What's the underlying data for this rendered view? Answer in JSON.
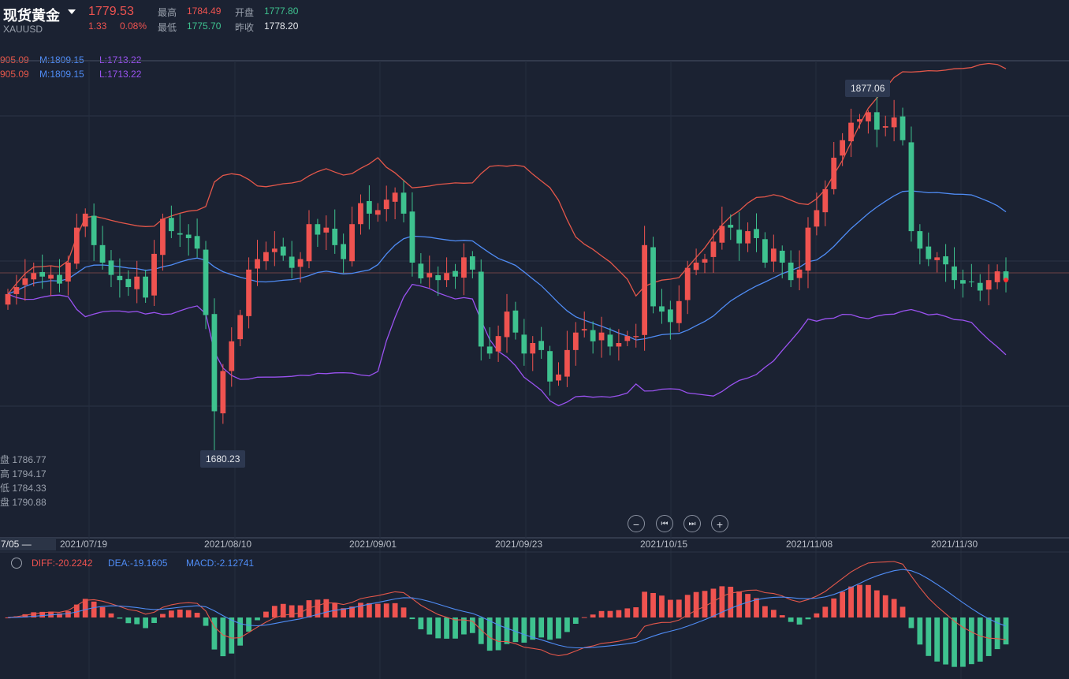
{
  "header": {
    "title": "现货黄金",
    "code": "XAUUSD",
    "price": "1779.53",
    "change": "1.33",
    "change_pct": "0.08%",
    "high_label": "最高",
    "high": "1784.49",
    "low_label": "最低",
    "low": "1775.70",
    "open_label": "开盘",
    "open": "1777.80",
    "prev_label": "昨收",
    "prev": "1778.20"
  },
  "boll": {
    "row1": {
      "u": "905.09",
      "m": "M:1809.15",
      "l": "L:1713.22"
    },
    "row2": {
      "u": "905.09",
      "m": "M:1809.15",
      "l": "L:1713.22"
    }
  },
  "tooltips": {
    "max": "1877.06",
    "min": "1680.23"
  },
  "ohlc_panel": [
    "盘 1786.77",
    "高 1794.17",
    "低 1784.33",
    "盘 1790.88"
  ],
  "controls": {
    "zoom_out": "−",
    "prev": "⏮",
    "next": "⏭",
    "zoom_in": "+"
  },
  "xaxis": {
    "cursor": "7/05 —",
    "labels": [
      "2021/07/19",
      "2021/08/10",
      "2021/09/01",
      "2021/09/23",
      "2021/10/15",
      "2021/11/08",
      "2021/11/30"
    ]
  },
  "macd": {
    "diff": "DIFF:-20.2242",
    "dea": "DEA:-19.1605",
    "macd": "MACD:-2.12741",
    "gear_icon": "gear-icon"
  },
  "colors": {
    "up": "#ef5350",
    "down": "#3ec28f",
    "boll_upper": "#e4574a",
    "boll_mid": "#4f8cf5",
    "boll_lower": "#9a52f0",
    "bg": "#1b2232"
  },
  "chart_data": {
    "type": "candlestick",
    "title": "现货黄金 XAUUSD",
    "ylim": [
      1675,
      1905
    ],
    "y_marks": {
      "max": 1877.06,
      "min": 1680.23
    },
    "close": [
      1772,
      1776,
      1781,
      1784,
      1782,
      1783,
      1778,
      1790,
      1810,
      1818,
      1800,
      1790,
      1783,
      1780,
      1776,
      1782,
      1770,
      1795,
      1815,
      1808,
      1806,
      1804,
      1798,
      1760,
      1705,
      1728,
      1745,
      1760,
      1786,
      1792,
      1796,
      1798,
      1794,
      1787,
      1792,
      1812,
      1806,
      1810,
      1800,
      1792,
      1812,
      1824,
      1818,
      1820,
      1826,
      1830,
      1818,
      1790,
      1781,
      1784,
      1780,
      1784,
      1782,
      1793,
      1786,
      1742,
      1738,
      1748,
      1762,
      1750,
      1738,
      1744,
      1740,
      1722,
      1726,
      1740,
      1750,
      1752,
      1745,
      1750,
      1742,
      1744,
      1748,
      1748,
      1800,
      1765,
      1762,
      1756,
      1768,
      1787,
      1790,
      1792,
      1802,
      1811,
      1810,
      1801,
      1808,
      1804,
      1790,
      1798,
      1790,
      1780,
      1786,
      1810,
      1820,
      1832,
      1850,
      1860,
      1870,
      1872,
      1876,
      1866,
      1868,
      1873,
      1860,
      1808,
      1798,
      1792,
      1793,
      1789,
      1780,
      1778,
      1779,
      1774,
      1780,
      1785,
      1780
    ]
  }
}
